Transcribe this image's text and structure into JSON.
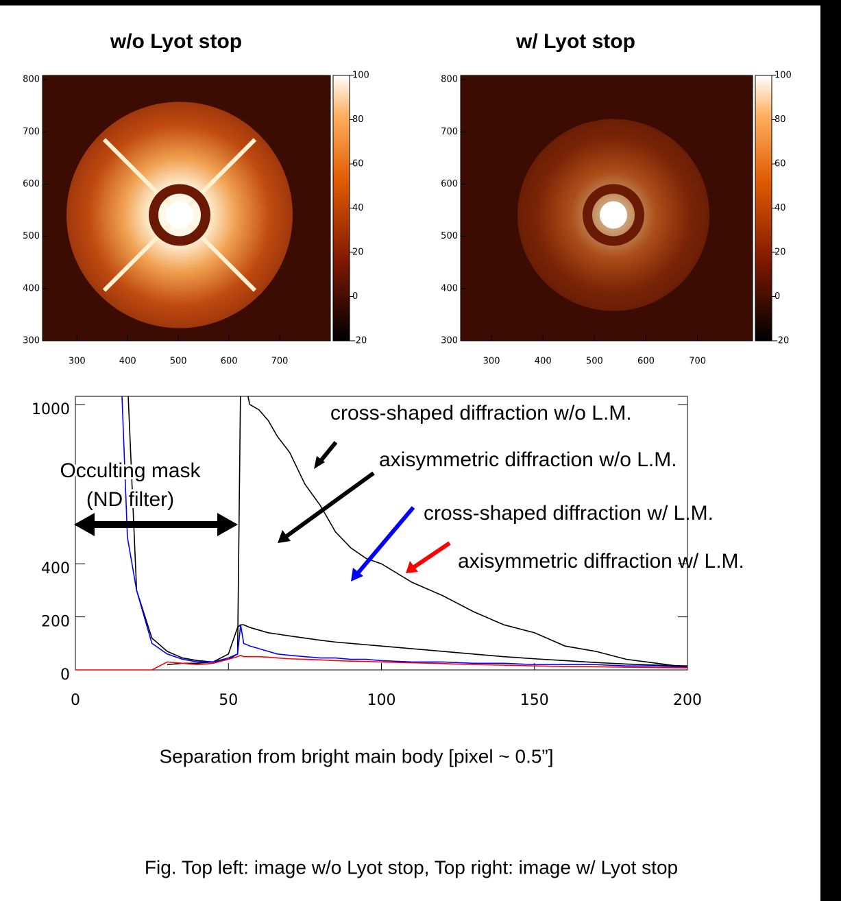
{
  "chart_data": [
    {
      "type": "image",
      "title": "w/o Lyot stop",
      "cross": true,
      "xlim": [
        232,
        800
      ],
      "ylim": [
        300,
        808
      ],
      "xticks": [
        300,
        400,
        500,
        600,
        700
      ],
      "yticks": [
        300,
        400,
        500,
        600,
        700,
        800
      ],
      "colorbar_lim": [
        -20,
        100
      ],
      "colorbar_ticks": [
        -20,
        0,
        20,
        40,
        60,
        80,
        100
      ]
    },
    {
      "type": "image",
      "title": "w/ Lyot stop",
      "cross": false,
      "xlim": [
        240,
        807
      ],
      "ylim": [
        300,
        808
      ],
      "xticks": [
        300,
        400,
        500,
        600,
        700
      ],
      "yticks": [
        300,
        400,
        500,
        600,
        700,
        800
      ],
      "colorbar_lim": [
        -20,
        100
      ],
      "colorbar_ticks": [
        -20,
        0,
        20,
        40,
        60,
        80,
        100
      ]
    },
    {
      "type": "line",
      "x": [
        0,
        5,
        10,
        14,
        15,
        17,
        20,
        25,
        30,
        35,
        40,
        45,
        50,
        53,
        54,
        55,
        57,
        60,
        63,
        66,
        70,
        75,
        80,
        85,
        90,
        95,
        100,
        110,
        120,
        130,
        140,
        150,
        160,
        170,
        180,
        190,
        200
      ],
      "series": [
        {
          "name": "cross-shaped diffraction w/o L.M.",
          "color": "#000000",
          "values": [
            null,
            null,
            null,
            null,
            null,
            1100,
            300,
            120,
            70,
            45,
            35,
            30,
            40,
            60,
            1100,
            1100,
            1000,
            980,
            940,
            880,
            820,
            700,
            620,
            520,
            460,
            420,
            400,
            330,
            280,
            220,
            170,
            140,
            90,
            70,
            40,
            25,
            10
          ]
        },
        {
          "name": "axisymmetric diffraction w/o L.M.",
          "color": "#000000",
          "values": [
            null,
            null,
            null,
            null,
            null,
            null,
            null,
            null,
            20,
            25,
            25,
            30,
            60,
            160,
            170,
            170,
            160,
            150,
            140,
            135,
            128,
            120,
            112,
            105,
            100,
            95,
            90,
            80,
            70,
            60,
            50,
            42,
            35,
            28,
            22,
            18,
            15
          ]
        },
        {
          "name": "cross-shaped diffraction w/ L.M.",
          "color": "#0000ff",
          "values": [
            null,
            null,
            null,
            null,
            1100,
            500,
            300,
            100,
            60,
            40,
            30,
            30,
            45,
            60,
            170,
            100,
            90,
            80,
            70,
            60,
            55,
            50,
            45,
            45,
            40,
            40,
            35,
            30,
            30,
            25,
            25,
            20,
            20,
            20,
            15,
            15,
            10
          ]
        },
        {
          "name": "axisymmetric diffraction w/ L.M.",
          "color": "#ff0000",
          "values": [
            0,
            0,
            0,
            0,
            0,
            0,
            0,
            0,
            30,
            25,
            20,
            25,
            40,
            50,
            55,
            50,
            50,
            50,
            48,
            45,
            42,
            40,
            38,
            35,
            33,
            32,
            30,
            27,
            24,
            20,
            18,
            15,
            13,
            12,
            10,
            9,
            8
          ]
        }
      ],
      "xlim": [
        0,
        200
      ],
      "ylim": [
        0,
        1000
      ],
      "xticks": [
        0,
        50,
        100,
        150,
        200
      ],
      "yticks": [
        0,
        200,
        400,
        1000
      ],
      "xlabel": "Separation from bright main body [pixel ~ 0.5”]",
      "annotation": [
        "Occulting mask",
        "(ND filter)"
      ]
    }
  ],
  "caption": "Fig. Top left: image w/o Lyot stop, Top right: image w/ Lyot stop"
}
